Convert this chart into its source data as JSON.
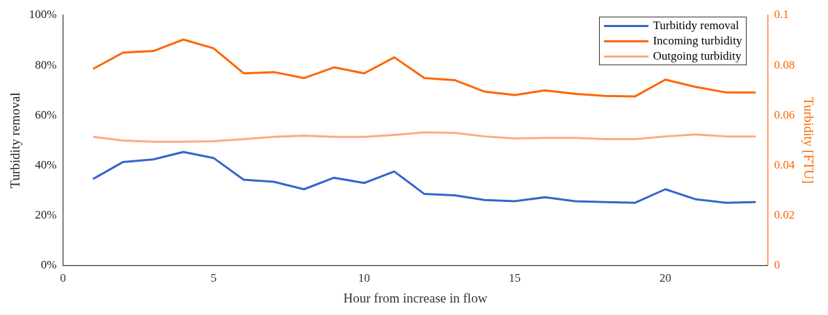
{
  "chart_data": {
    "type": "line",
    "xlabel": "Hour from increase in flow",
    "ylabel": "Turbidity removal",
    "y2label": "Turbidity [FTU]",
    "x": [
      1,
      2,
      3,
      4,
      5,
      6,
      7,
      8,
      9,
      10,
      11,
      12,
      13,
      14,
      15,
      16,
      17,
      18,
      19,
      20,
      21,
      22,
      23
    ],
    "xlim": [
      0,
      23.4
    ],
    "xticks": [
      0,
      5,
      10,
      15,
      20
    ],
    "ylim": [
      0,
      100
    ],
    "yticks": [
      {
        "value": 0,
        "label": "0%"
      },
      {
        "value": 20,
        "label": "20%"
      },
      {
        "value": 40,
        "label": "40%"
      },
      {
        "value": 60,
        "label": "60%"
      },
      {
        "value": 80,
        "label": "80%"
      },
      {
        "value": 100,
        "label": "100%"
      }
    ],
    "y2lim": [
      0,
      0.1
    ],
    "y2ticks": [
      0,
      0.02,
      0.04,
      0.06,
      0.08,
      0.1
    ],
    "grid": false,
    "legend": "top right",
    "marker": "none",
    "line_style": "solid",
    "series": [
      {
        "name": "Turbitidy removal",
        "color": "#3366cc",
        "values": [
          34.6,
          41.4,
          42.4,
          45.4,
          43,
          34.3,
          33.5,
          30.5,
          35.1,
          33,
          37.6,
          28.6,
          28.1,
          26.2,
          25.7,
          27.3,
          25.7,
          25.4,
          25.1,
          30.5,
          26.5,
          25.1,
          25.4
        ]
      },
      {
        "name": "Incoming turbidity",
        "color": "#ff6600",
        "axis": "y2",
        "values": [
          0.0786,
          0.0851,
          0.0857,
          0.0903,
          0.0868,
          0.0768,
          0.0773,
          0.0749,
          0.0792,
          0.0768,
          0.0832,
          0.0749,
          0.0741,
          0.0695,
          0.0681,
          0.07,
          0.0686,
          0.0678,
          0.0676,
          0.0743,
          0.0714,
          0.0692,
          0.0692
        ]
      },
      {
        "name": "Outgoing turbidity",
        "color": "#ffaa80",
        "axis": "y2",
        "values": [
          0.0514,
          0.05,
          0.0495,
          0.0495,
          0.0497,
          0.0505,
          0.0514,
          0.0519,
          0.0514,
          0.0514,
          0.0522,
          0.0532,
          0.053,
          0.0516,
          0.0508,
          0.051,
          0.051,
          0.0505,
          0.0505,
          0.0516,
          0.0524,
          0.0516,
          0.0516
        ]
      }
    ]
  }
}
